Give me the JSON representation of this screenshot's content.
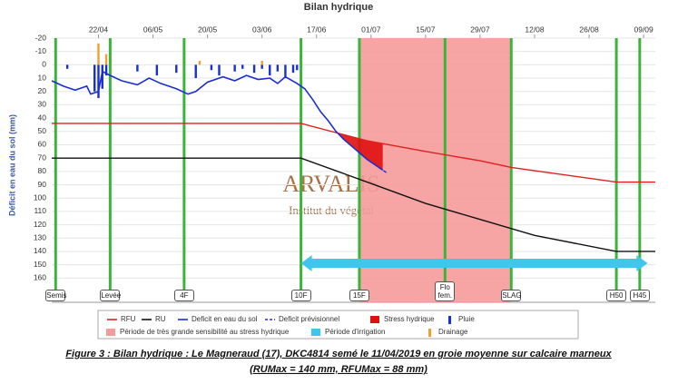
{
  "chart_data": {
    "type": "line",
    "title": "Bilan hydrique",
    "y_label": "Déficit en eau du sol (mm)",
    "ylim": [
      -20,
      170
    ],
    "yticks": [
      -20,
      -10,
      0,
      10,
      20,
      30,
      40,
      50,
      60,
      70,
      80,
      90,
      100,
      110,
      120,
      130,
      140,
      150,
      160
    ],
    "y_reversed": true,
    "grid": true,
    "xlim": [
      "10/04",
      "12/09"
    ],
    "xticks": [
      "22/04",
      "06/05",
      "20/05",
      "03/06",
      "17/06",
      "01/07",
      "15/07",
      "29/07",
      "12/08",
      "26/08",
      "09/09"
    ],
    "series": [
      {
        "name": "RFU",
        "type": "line",
        "color": "#e02020",
        "x": [
          "10/04",
          "13/06",
          "30/06",
          "15/07",
          "29/07",
          "06/08",
          "02/09",
          "12/09"
        ],
        "values": [
          44,
          44,
          57,
          65,
          72,
          77,
          88,
          88
        ]
      },
      {
        "name": "RU",
        "type": "line",
        "color": "#111111",
        "x": [
          "10/04",
          "13/06",
          "30/06",
          "15/07",
          "29/07",
          "12/08",
          "02/09",
          "12/09"
        ],
        "values": [
          70,
          70,
          88,
          104,
          116,
          128,
          140,
          140
        ]
      },
      {
        "name": "Deficit en eau du sol",
        "type": "line",
        "color": "#1a2fd0",
        "x": [
          "10/04",
          "13/04",
          "16/04",
          "19/04",
          "20/04",
          "22/04",
          "23/04",
          "25/04",
          "28/04",
          "02/05",
          "05/05",
          "08/05",
          "12/05",
          "15/05",
          "17/05",
          "20/05",
          "24/05",
          "27/05",
          "30/05",
          "02/06",
          "05/06",
          "07/06",
          "09/06",
          "12/06",
          "14/06",
          "16/06",
          "18/06",
          "20/06",
          "22/06",
          "24/06",
          "26/06",
          "28/06",
          "30/06",
          "02/07",
          "04/07"
        ],
        "values": [
          12,
          16,
          19,
          16,
          22,
          20,
          5,
          8,
          12,
          15,
          10,
          14,
          18,
          22,
          20,
          13,
          9,
          12,
          8,
          11,
          10,
          14,
          9,
          14,
          18,
          26,
          35,
          42,
          50,
          56,
          61,
          66,
          71,
          75,
          79
        ]
      },
      {
        "name": "Deficit prévisionnel",
        "type": "line",
        "dash": true,
        "color": "#1a2fd0",
        "x": [
          "03/07",
          "05/07"
        ],
        "values": [
          77,
          81
        ]
      },
      {
        "name": "Pluie",
        "type": "bar",
        "color": "#1a2fd0",
        "x": [
          "14/04",
          "21/04",
          "22/04",
          "23/04",
          "24/04",
          "02/05",
          "07/05",
          "12/05",
          "17/05",
          "21/05",
          "23/05",
          "27/05",
          "29/05",
          "01/06",
          "03/06",
          "05/06",
          "07/06",
          "09/06",
          "11/06",
          "12/06"
        ],
        "values": [
          3,
          20,
          25,
          18,
          8,
          5,
          8,
          6,
          10,
          4,
          8,
          5,
          3,
          6,
          3,
          8,
          5,
          10,
          6,
          4
        ]
      },
      {
        "name": "Drainage",
        "type": "bar",
        "color": "#f0a030",
        "x": [
          "22/04",
          "24/04",
          "18/05",
          "03/06"
        ],
        "values": [
          -16,
          -8,
          -3,
          -3
        ]
      }
    ],
    "stress": {
      "name": "Stress hydrique",
      "color": "#e01010"
    },
    "periods": [
      {
        "name": "Période de très grande sensibilité au stress hydrique",
        "style": "band",
        "color": "#f69a9a",
        "start": "28/06",
        "end": "06/08"
      },
      {
        "name": "Période d'irrigation",
        "style": "arrow",
        "color": "#3ec6ef",
        "start": "13/06",
        "end": "10/09"
      }
    ],
    "stage_color": "#3cb43c",
    "stages": [
      {
        "label": "Semis",
        "x": "11/04"
      },
      {
        "label": "Levée",
        "x": "25/04"
      },
      {
        "label": "4F",
        "x": "14/05"
      },
      {
        "label": "10F",
        "x": "13/06"
      },
      {
        "label": "15F",
        "x": "28/06"
      },
      {
        "label": "Flo fem.",
        "x": "20/07"
      },
      {
        "label": "SLAG",
        "x": "06/08"
      },
      {
        "label": "H50",
        "x": "02/09"
      },
      {
        "label": "H45",
        "x": "08/09"
      }
    ],
    "watermark": {
      "name": "ARVALIS",
      "tagline": "Institut du végétal"
    },
    "caption": [
      "Figure 3 : Bilan hydrique : Le Magneraud (17), DKC4814 semé le 11/04/2019 en groie moyenne sur calcaire marneux",
      "(RUMax = 140 mm, RFUMax = 88 mm)"
    ]
  }
}
